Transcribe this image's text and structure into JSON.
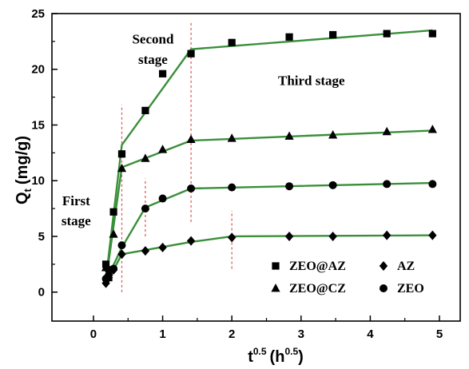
{
  "chart_data": {
    "type": "scatter",
    "xlabel": "t",
    "xlabel_sup": "0.5",
    "xlabel_unit": "(h",
    "xlabel_unit_sup": "0.5",
    "xlabel_unit_close": ")",
    "ylabel": "Q",
    "ylabel_sub": "t",
    "ylabel_unit": "(mg/g)",
    "xlim": [
      -0.6,
      5.3
    ],
    "ylim": [
      -2.6,
      25
    ],
    "xticks": [
      0,
      1,
      2,
      3,
      4,
      5
    ],
    "yticks": [
      0,
      5,
      10,
      15,
      20,
      25
    ],
    "fit_line_color": "#3a8f3a",
    "stage_line_color": "#e05050",
    "annotations": [
      {
        "name": "annot-second-stage-line1",
        "text": "Second",
        "x": 0.86,
        "y": 22.3
      },
      {
        "name": "annot-second-stage-line2",
        "text": "stage",
        "x": 0.86,
        "y": 20.5
      },
      {
        "name": "annot-third-stage",
        "text": "Third stage",
        "x": 3.15,
        "y": 18.6
      },
      {
        "name": "annot-first-stage-line1",
        "text": "First",
        "x": -0.25,
        "y": 7.8
      },
      {
        "name": "annot-first-stage-line2",
        "text": "stage",
        "x": -0.25,
        "y": 6.0
      }
    ],
    "stage_lines": [
      {
        "x": 0.41,
        "y0": 0,
        "y1": 16.8
      },
      {
        "x": 1.41,
        "y0": 6.3,
        "y1": 24.2
      },
      {
        "x": 0.75,
        "y0": 5.0,
        "y1": 10.2
      },
      {
        "x": 2.0,
        "y0": 2.1,
        "y1": 7.3
      }
    ],
    "series": [
      {
        "name": "ZEO@AZ",
        "marker": "square",
        "x": [
          0.18,
          0.22,
          0.29,
          0.41,
          0.75,
          1.0,
          1.41,
          2.0,
          2.83,
          3.46,
          4.24,
          4.9
        ],
        "y": [
          2.5,
          1.3,
          7.2,
          12.4,
          16.3,
          19.6,
          21.4,
          22.4,
          22.9,
          23.1,
          23.2,
          23.2
        ],
        "fit": [
          [
            0.18,
            1.2
          ],
          [
            0.41,
            13.2
          ],
          [
            1.41,
            21.8
          ],
          [
            4.9,
            23.5
          ]
        ]
      },
      {
        "name": "ZEO@CZ",
        "marker": "triangle",
        "x": [
          0.18,
          0.22,
          0.29,
          0.41,
          0.75,
          1.0,
          1.41,
          2.0,
          2.83,
          3.46,
          4.24,
          4.9
        ],
        "y": [
          2.2,
          1.8,
          5.2,
          11.1,
          12.0,
          12.8,
          13.7,
          13.8,
          14.0,
          14.1,
          14.4,
          14.6
        ],
        "fit": [
          [
            0.18,
            1.0
          ],
          [
            0.41,
            11.2
          ],
          [
            1.41,
            13.6
          ],
          [
            4.9,
            14.5
          ]
        ]
      },
      {
        "name": "ZEO",
        "marker": "circle",
        "x": [
          0.18,
          0.22,
          0.29,
          0.41,
          0.75,
          1.0,
          1.41,
          2.0,
          2.83,
          3.46,
          4.24,
          4.9
        ],
        "y": [
          1.2,
          2.0,
          2.1,
          4.2,
          7.5,
          8.4,
          9.3,
          9.4,
          9.5,
          9.6,
          9.7,
          9.7
        ],
        "fit": [
          [
            0.18,
            1.0
          ],
          [
            0.41,
            4.0
          ],
          [
            0.75,
            7.6
          ],
          [
            1.41,
            9.3
          ],
          [
            4.9,
            9.8
          ]
        ]
      },
      {
        "name": "AZ",
        "marker": "diamond",
        "x": [
          0.18,
          0.22,
          0.29,
          0.41,
          0.75,
          1.0,
          1.41,
          2.0,
          2.83,
          3.46,
          4.24,
          4.9
        ],
        "y": [
          0.8,
          1.3,
          2.0,
          3.4,
          3.7,
          4.0,
          4.6,
          4.9,
          5.0,
          5.0,
          5.1,
          5.1
        ],
        "fit": [
          [
            0.18,
            0.7
          ],
          [
            0.41,
            3.4
          ],
          [
            1.41,
            4.5
          ],
          [
            2.0,
            5.0
          ],
          [
            4.9,
            5.1
          ]
        ]
      }
    ],
    "legend": {
      "position": "bottom-right",
      "entries": [
        {
          "series": "ZEO@AZ",
          "marker": "square",
          "label": "ZEO@AZ"
        },
        {
          "series": "AZ",
          "marker": "diamond",
          "label": "AZ"
        },
        {
          "series": "ZEO@CZ",
          "marker": "triangle",
          "label": "ZEO@CZ"
        },
        {
          "series": "ZEO",
          "marker": "circle",
          "label": "ZEO"
        }
      ]
    }
  }
}
